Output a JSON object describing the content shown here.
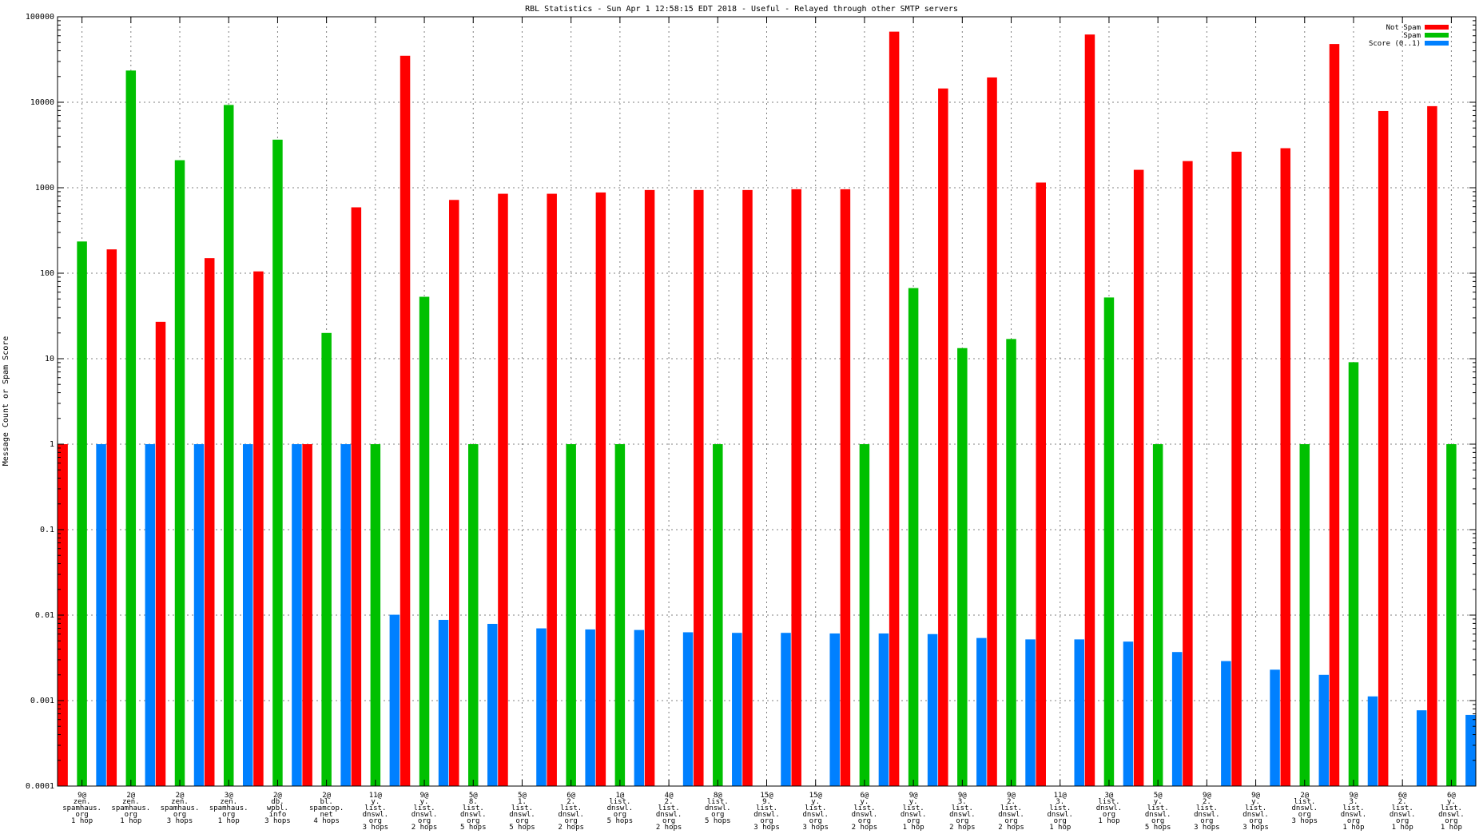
{
  "chart_data": {
    "type": "bar",
    "title": "RBL Statistics - Sun Apr  1 12:58:15 EDT 2018 - Useful - Relayed through other SMTP servers",
    "xlabel": "",
    "ylabel": "Message Count or Spam Score",
    "yscale": "log",
    "ylim": [
      0.0001,
      100000
    ],
    "yticks": [
      "0.0001",
      "0.001",
      "0.01",
      "0.1",
      "1",
      "10",
      "100",
      "1000",
      "10000",
      "100000"
    ],
    "grid": true,
    "legend_position": "top-right",
    "categories": [
      [
        "9@",
        "zen.",
        "spamhaus.",
        "org",
        "1 hop"
      ],
      [
        "2@",
        "zen.",
        "spamhaus.",
        "org",
        "1 hop"
      ],
      [
        "2@",
        "zen.",
        "spamhaus.",
        "org",
        "3 hops"
      ],
      [
        "3@",
        "zen.",
        "spamhaus.",
        "org",
        "1 hop"
      ],
      [
        "2@",
        "db.",
        "wpbl.",
        "info",
        "3 hops"
      ],
      [
        "2@",
        "bl.",
        "spamcop.",
        "net",
        "4 hops"
      ],
      [
        "11@",
        "y.",
        "list.",
        "dnswl.",
        "org",
        "3 hops"
      ],
      [
        "9@",
        "y.",
        "list.",
        "dnswl.",
        "org",
        "2 hops"
      ],
      [
        "5@",
        "8.",
        "list.",
        "dnswl.",
        "org",
        "5 hops"
      ],
      [
        "5@",
        "1.",
        "list.",
        "dnswl.",
        "org",
        "5 hops"
      ],
      [
        "6@",
        "2.",
        "list.",
        "dnswl.",
        "org",
        "2 hops"
      ],
      [
        "1@",
        "list.",
        "dnswl.",
        "org",
        "5 hops"
      ],
      [
        "4@",
        "2.",
        "list.",
        "dnswl.",
        "org",
        "2 hops"
      ],
      [
        "8@",
        "list.",
        "dnswl.",
        "org",
        "5 hops"
      ],
      [
        "15@",
        "9.",
        "list.",
        "dnswl.",
        "org",
        "3 hops"
      ],
      [
        "15@",
        "y.",
        "list.",
        "dnswl.",
        "org",
        "3 hops"
      ],
      [
        "6@",
        "y.",
        "list.",
        "dnswl.",
        "org",
        "2 hops"
      ],
      [
        "9@",
        "y.",
        "list.",
        "dnswl.",
        "org",
        "1 hop"
      ],
      [
        "9@",
        "3.",
        "list.",
        "dnswl.",
        "org",
        "2 hops"
      ],
      [
        "9@",
        "2.",
        "list.",
        "dnswl.",
        "org",
        "2 hops"
      ],
      [
        "11@",
        "3.",
        "list.",
        "dnswl.",
        "org",
        "1 hop"
      ],
      [
        "3@",
        "list.",
        "dnswl.",
        "org",
        "1 hop"
      ],
      [
        "5@",
        "y.",
        "list.",
        "dnswl.",
        "org",
        "5 hops"
      ],
      [
        "9@",
        "2.",
        "list.",
        "dnswl.",
        "org",
        "3 hops"
      ],
      [
        "9@",
        "y.",
        "list.",
        "dnswl.",
        "org",
        "3 hops"
      ],
      [
        "2@",
        "list.",
        "dnswl.",
        "org",
        "3 hops"
      ],
      [
        "9@",
        "3.",
        "list.",
        "dnswl.",
        "org",
        "1 hop"
      ],
      [
        "6@",
        "2.",
        "list.",
        "dnswl.",
        "org",
        "1 hop"
      ],
      [
        "6@",
        "y.",
        "list.",
        "dnswl.",
        "org",
        "1 hop"
      ]
    ],
    "series": [
      {
        "name": "Not Spam",
        "color": "#ff0000",
        "values": [
          1,
          190,
          27,
          150,
          105,
          1,
          590,
          35000,
          720,
          850,
          850,
          880,
          940,
          940,
          940,
          960,
          960,
          67000,
          14500,
          19500,
          1150,
          62000,
          1620,
          2050,
          2640,
          2900,
          48000,
          7900,
          9000
        ]
      },
      {
        "name": "Spam",
        "color": "#00c000",
        "values": [
          235,
          23500,
          2100,
          9300,
          3650,
          20,
          1,
          53,
          1,
          null,
          1,
          1,
          null,
          1,
          null,
          null,
          1,
          67,
          13.3,
          17,
          null,
          52,
          1,
          null,
          null,
          1,
          9.1,
          null,
          1
        ]
      },
      {
        "name": "Score (0..1)",
        "color": "#0080ff",
        "values": [
          1,
          1,
          1,
          1,
          1,
          1,
          0.0101,
          0.0088,
          0.0079,
          0.007,
          0.0068,
          0.0067,
          0.0063,
          0.0062,
          0.0062,
          0.0061,
          0.0061,
          0.006,
          0.0054,
          0.0052,
          0.0052,
          0.0049,
          0.0037,
          0.0029,
          0.0023,
          0.002,
          0.00112,
          0.00077,
          0.00068
        ]
      }
    ]
  }
}
